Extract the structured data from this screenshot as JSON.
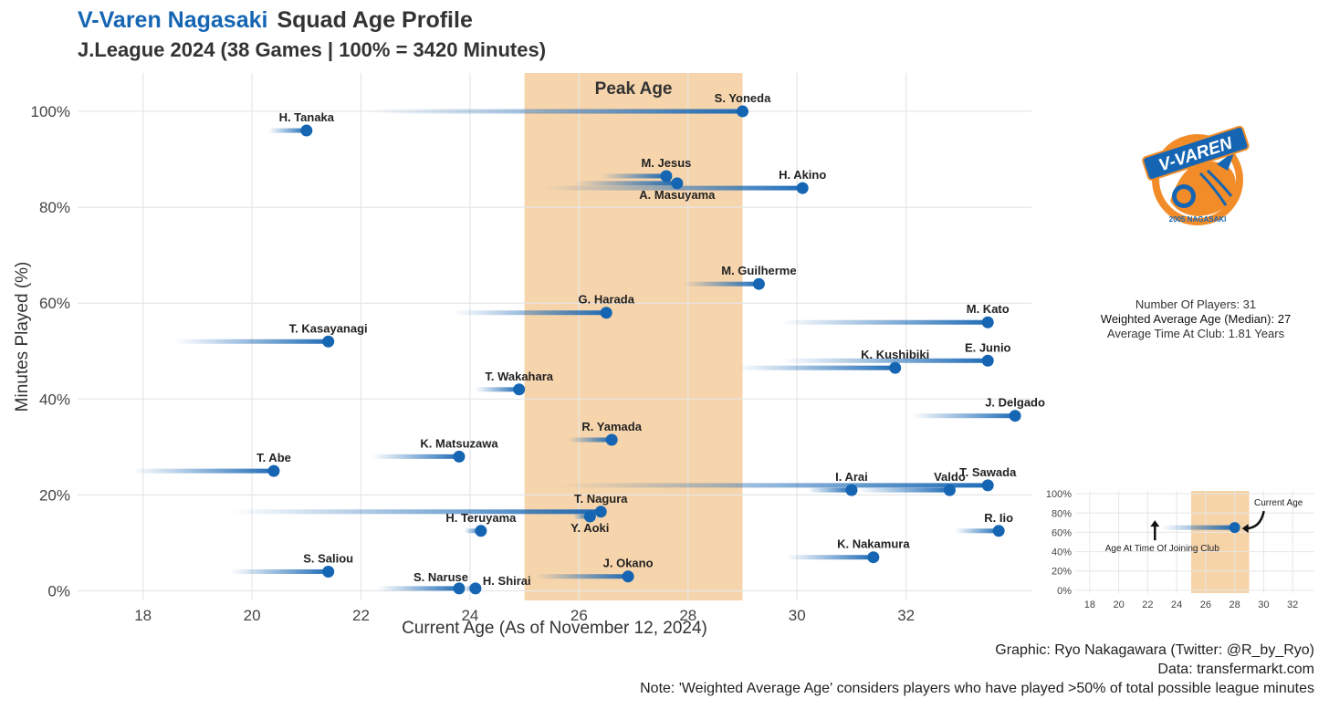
{
  "header": {
    "team": "V-Varen Nagasaki",
    "title_rest": "Squad Age Profile",
    "subtitle": "J.League 2024 (38 Games | 100% = 3420 Minutes)"
  },
  "stats": {
    "players": "Number Of Players: 31",
    "weighted_age": "Weighted Average Age (Median): 27",
    "avg_time": "Average Time At Club: 1.81 Years"
  },
  "credits": {
    "graphic": "Graphic: Ryo Nakagawara (Twitter: @R_by_Ryo)",
    "data": "Data: transfermarkt.com",
    "note": "Note: 'Weighted Average Age' considers players who have played >50% of total possible league minutes"
  },
  "logo": {
    "text": "V-VAREN",
    "ring_text": "2005 NAGASAKI"
  },
  "colors": {
    "accent": "#1565b3",
    "peak": "#f7d3a8",
    "grid": "#e6e6e6",
    "logo_orange": "#f28c28"
  },
  "chart_data": {
    "type": "scatter",
    "title": "",
    "xlabel": "Current Age (As of November 12, 2024)",
    "ylabel": "Minutes Played (%)",
    "xlim": [
      16.8,
      34.3
    ],
    "ylim": [
      -2,
      108
    ],
    "xticks": [
      18,
      20,
      22,
      24,
      26,
      28,
      30,
      32
    ],
    "yticks": [
      0,
      20,
      40,
      60,
      80,
      100
    ],
    "ytick_labels": [
      "0%",
      "20%",
      "40%",
      "60%",
      "80%",
      "100%"
    ],
    "peak_label": "Peak Age",
    "peak_range": [
      25,
      29
    ],
    "players": [
      {
        "name": "S. Yoneda",
        "join_age": 22.2,
        "age": 29.0,
        "pct": 100,
        "label_pos": "above"
      },
      {
        "name": "H. Tanaka",
        "join_age": 20.3,
        "age": 21.0,
        "pct": 96,
        "label_pos": "above"
      },
      {
        "name": "M. Jesus",
        "join_age": 26.4,
        "age": 27.6,
        "pct": 86.5,
        "label_pos": "above"
      },
      {
        "name": "A. Masuyama",
        "join_age": 25.9,
        "age": 27.8,
        "pct": 85,
        "label_pos": "below"
      },
      {
        "name": "H. Akino",
        "join_age": 25.3,
        "age": 30.1,
        "pct": 84,
        "label_pos": "above"
      },
      {
        "name": "M. Guilherme",
        "join_age": 27.9,
        "age": 29.3,
        "pct": 64,
        "label_pos": "above"
      },
      {
        "name": "G. Harada",
        "join_age": 23.7,
        "age": 26.5,
        "pct": 58,
        "label_pos": "above"
      },
      {
        "name": "M. Kato",
        "join_age": 29.7,
        "age": 33.5,
        "pct": 56,
        "label_pos": "above"
      },
      {
        "name": "T. Kasayanagi",
        "join_age": 18.6,
        "age": 21.4,
        "pct": 52,
        "label_pos": "above"
      },
      {
        "name": "E. Junio",
        "join_age": 29.7,
        "age": 33.5,
        "pct": 48,
        "label_pos": "above"
      },
      {
        "name": "K. Kushibiki",
        "join_age": 28.9,
        "age": 31.8,
        "pct": 46.5,
        "label_pos": "above"
      },
      {
        "name": "T. Wakahara",
        "join_age": 24.1,
        "age": 24.9,
        "pct": 42,
        "label_pos": "above"
      },
      {
        "name": "J. Delgado",
        "join_age": 32.1,
        "age": 34.0,
        "pct": 36.5,
        "label_pos": "above"
      },
      {
        "name": "R. Yamada",
        "join_age": 25.8,
        "age": 26.6,
        "pct": 31.5,
        "label_pos": "above"
      },
      {
        "name": "K. Matsuzawa",
        "join_age": 22.2,
        "age": 23.8,
        "pct": 28,
        "label_pos": "above"
      },
      {
        "name": "T. Abe",
        "join_age": 17.8,
        "age": 20.4,
        "pct": 25,
        "label_pos": "above"
      },
      {
        "name": "T. Sawada",
        "join_age": 25.6,
        "age": 33.5,
        "pct": 22,
        "label_pos": "above"
      },
      {
        "name": "I. Arai",
        "join_age": 30.2,
        "age": 31.0,
        "pct": 21,
        "label_pos": "above"
      },
      {
        "name": "Valdo",
        "join_age": 31.1,
        "age": 32.8,
        "pct": 21,
        "label_pos": "above"
      },
      {
        "name": "T. Nagura",
        "join_age": 19.6,
        "age": 26.4,
        "pct": 16.5,
        "label_pos": "above"
      },
      {
        "name": "Y. Aoki",
        "join_age": 25.9,
        "age": 26.2,
        "pct": 15.5,
        "label_pos": "below"
      },
      {
        "name": "H. Teruyama",
        "join_age": 23.9,
        "age": 24.2,
        "pct": 12.5,
        "label_pos": "above"
      },
      {
        "name": "R. Iio",
        "join_age": 32.9,
        "age": 33.7,
        "pct": 12.5,
        "label_pos": "above"
      },
      {
        "name": "K. Nakamura",
        "join_age": 29.8,
        "age": 31.4,
        "pct": 7,
        "label_pos": "above"
      },
      {
        "name": "S. Saliou",
        "join_age": 19.6,
        "age": 21.4,
        "pct": 4,
        "label_pos": "above"
      },
      {
        "name": "J. Okano",
        "join_age": 25.2,
        "age": 26.9,
        "pct": 3,
        "label_pos": "above"
      },
      {
        "name": "S. Naruse",
        "join_age": 22.3,
        "age": 23.8,
        "pct": 0.5,
        "label_pos": "above-left"
      },
      {
        "name": "H. Shirai",
        "join_age": 23.9,
        "age": 24.1,
        "pct": 0.5,
        "label_pos": "right"
      }
    ],
    "legend_inset": {
      "xticks": [
        18,
        20,
        22,
        24,
        26,
        28,
        30,
        32
      ],
      "yticks": [
        0,
        20,
        40,
        60,
        80,
        100
      ],
      "ytick_labels": [
        "0%",
        "20%",
        "40%",
        "60%",
        "80%",
        "100%"
      ],
      "xlim": [
        17,
        33.5
      ],
      "ylim": [
        -3,
        103
      ],
      "peak_range": [
        25,
        29
      ],
      "example_join_age": 23.0,
      "example_age": 28.0,
      "example_pct": 65,
      "current_age_label": "Current Age",
      "join_label": "Age At Time Of Joining Club"
    }
  }
}
